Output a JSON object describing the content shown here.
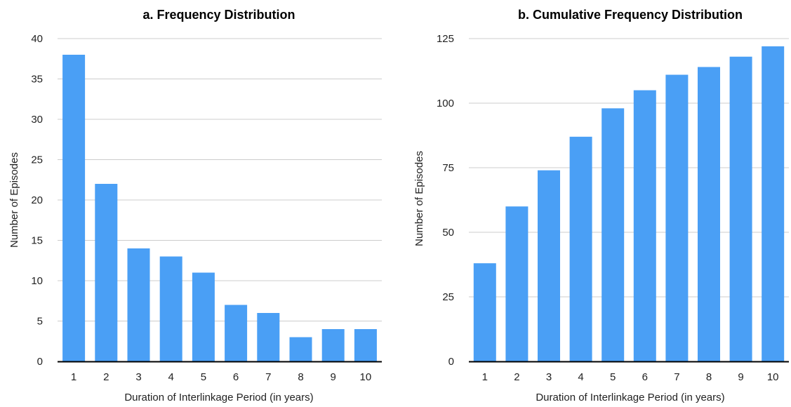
{
  "colors": {
    "bar": "#4a9ff5",
    "gridline": "#cccccc",
    "axis": "#000000",
    "text": "#222222"
  },
  "chart_data": [
    {
      "type": "bar",
      "title": "a. Frequency Distribution",
      "xlabel": "Duration of Interlinkage Period (in years)",
      "ylabel": "Number of Episodes",
      "categories": [
        "1",
        "2",
        "3",
        "4",
        "5",
        "6",
        "7",
        "8",
        "9",
        "10"
      ],
      "values": [
        38,
        22,
        14,
        13,
        11,
        7,
        6,
        3,
        4,
        4
      ],
      "ylim": [
        0,
        40
      ],
      "yticks": [
        0,
        5,
        10,
        15,
        20,
        25,
        30,
        35,
        40
      ],
      "grid": true,
      "legend": "none"
    },
    {
      "type": "bar",
      "title": "b. Cumulative Frequency Distribution",
      "xlabel": "Duration of Interlinkage Period (in years)",
      "ylabel": "Number of Episodes",
      "categories": [
        "1",
        "2",
        "3",
        "4",
        "5",
        "6",
        "7",
        "8",
        "9",
        "10"
      ],
      "values": [
        38,
        60,
        74,
        87,
        98,
        105,
        111,
        114,
        118,
        122
      ],
      "ylim": [
        0,
        125
      ],
      "yticks": [
        0,
        25,
        50,
        75,
        100,
        125
      ],
      "grid": true,
      "legend": "none"
    }
  ]
}
